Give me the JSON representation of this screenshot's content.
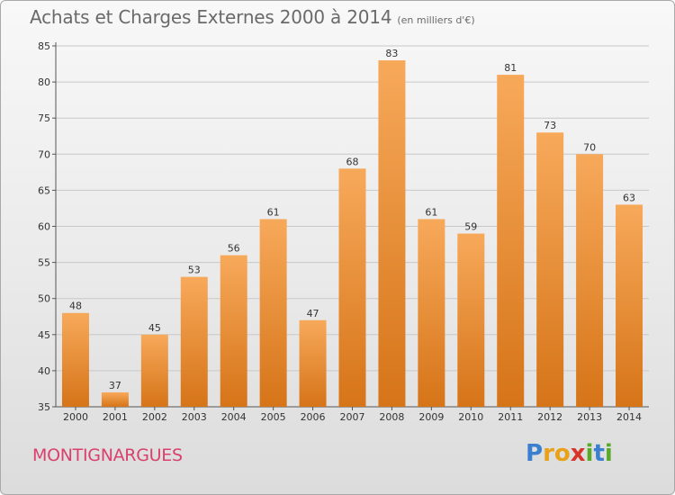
{
  "header": {
    "title": "Achats et Charges Externes 2000 à 2014",
    "subtitle": "(en milliers d'€)"
  },
  "footer": {
    "commune": "MONTIGNARGUES",
    "logo_text": "Proxiti",
    "logo_letters": [
      {
        "char": "P",
        "color": "#3a7fd0"
      },
      {
        "char": "r",
        "color": "#e8a21a"
      },
      {
        "char": "o",
        "color": "#e8a21a"
      },
      {
        "char": "x",
        "color": "#d9342b"
      },
      {
        "char": "i",
        "color": "#5aaa2a"
      },
      {
        "char": "t",
        "color": "#3a7fd0"
      },
      {
        "char": "i",
        "color": "#5aaa2a"
      }
    ]
  },
  "colors": {
    "bar_light": "#f7a95a",
    "bar_dark": "#d67418",
    "grid": "#c8c8c8",
    "commune": "#d9416c"
  },
  "chart_data": {
    "type": "bar",
    "title": "Achats et Charges Externes 2000 à 2014",
    "subtitle": "(en milliers d'€)",
    "categories": [
      "2000",
      "2001",
      "2002",
      "2003",
      "2004",
      "2005",
      "2006",
      "2007",
      "2008",
      "2009",
      "2010",
      "2011",
      "2012",
      "2013",
      "2014"
    ],
    "values": [
      48,
      37,
      45,
      53,
      56,
      61,
      47,
      68,
      83,
      61,
      59,
      81,
      73,
      70,
      63
    ],
    "ylim": [
      35,
      85
    ],
    "yticks": [
      35,
      40,
      45,
      50,
      55,
      60,
      65,
      70,
      75,
      80,
      85
    ],
    "grid": true,
    "xlabel": "",
    "ylabel": ""
  }
}
